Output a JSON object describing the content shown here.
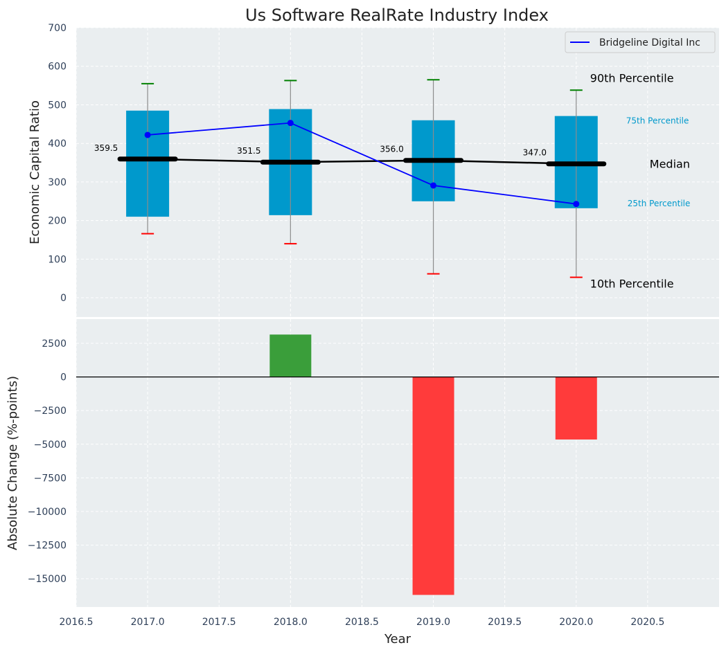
{
  "chart_data": [
    {
      "type": "box",
      "title": "Us Software RealRate Industry Index",
      "xlabel": "",
      "ylabel": "Economic Capital Ratio",
      "ylim": [
        -50,
        700
      ],
      "xlim": [
        2016.5,
        2021.0
      ],
      "yticks": [
        0,
        100,
        200,
        300,
        400,
        500,
        600,
        700
      ],
      "grid": true,
      "legend": {
        "position": "top-right",
        "entries": [
          {
            "label": "Bridgeline Digital Inc",
            "color": "#0000ff"
          }
        ]
      },
      "boxes": [
        {
          "x": 2017.0,
          "p10": 166,
          "p25": 210,
          "median": 359.5,
          "p75": 485,
          "p90": 555,
          "median_label": "359.5"
        },
        {
          "x": 2018.0,
          "p10": 140,
          "p25": 214,
          "median": 351.5,
          "p75": 489,
          "p90": 563,
          "median_label": "351.5"
        },
        {
          "x": 2019.0,
          "p10": 62,
          "p25": 250,
          "median": 356.0,
          "p75": 460,
          "p90": 565,
          "median_label": "356.0"
        },
        {
          "x": 2020.0,
          "p10": 53,
          "p25": 232,
          "median": 347.0,
          "p75": 471,
          "p90": 538,
          "median_label": "347.0"
        }
      ],
      "series": [
        {
          "name": "Bridgeline Digital Inc",
          "x": [
            2017.0,
            2018.0,
            2019.0,
            2020.0
          ],
          "values": [
            422,
            453,
            291,
            243
          ],
          "color": "#0000ff"
        }
      ],
      "annotations": {
        "p90": "90th Percentile",
        "p75": "75th Percentile",
        "median": "Median",
        "p25": "25th Percentile",
        "p10": "10th Percentile"
      },
      "colors": {
        "box": "#0099cc",
        "median": "#000000",
        "p90_cap": "#008000",
        "p10_cap": "#ff0000",
        "whisker": "#8c8c8c",
        "background": "#eaeef0"
      }
    },
    {
      "type": "bar",
      "xlabel": "Year",
      "ylabel": "Absolute Change (%-points)",
      "ylim": [
        -17100,
        4300
      ],
      "xlim": [
        2016.5,
        2021.0
      ],
      "yticks": [
        2500,
        0,
        -2500,
        -5000,
        -7500,
        -10000,
        -12500,
        -15000
      ],
      "xticks": [
        2016.5,
        2017.0,
        2017.5,
        2018.0,
        2018.5,
        2019.0,
        2019.5,
        2020.0,
        2020.5
      ],
      "grid": true,
      "x": [
        2018.0,
        2019.0,
        2020.0
      ],
      "values": [
        3150,
        -16200,
        -4650
      ],
      "colors": {
        "positive": "#3a9e3a",
        "negative": "#ff3b3b"
      }
    }
  ]
}
